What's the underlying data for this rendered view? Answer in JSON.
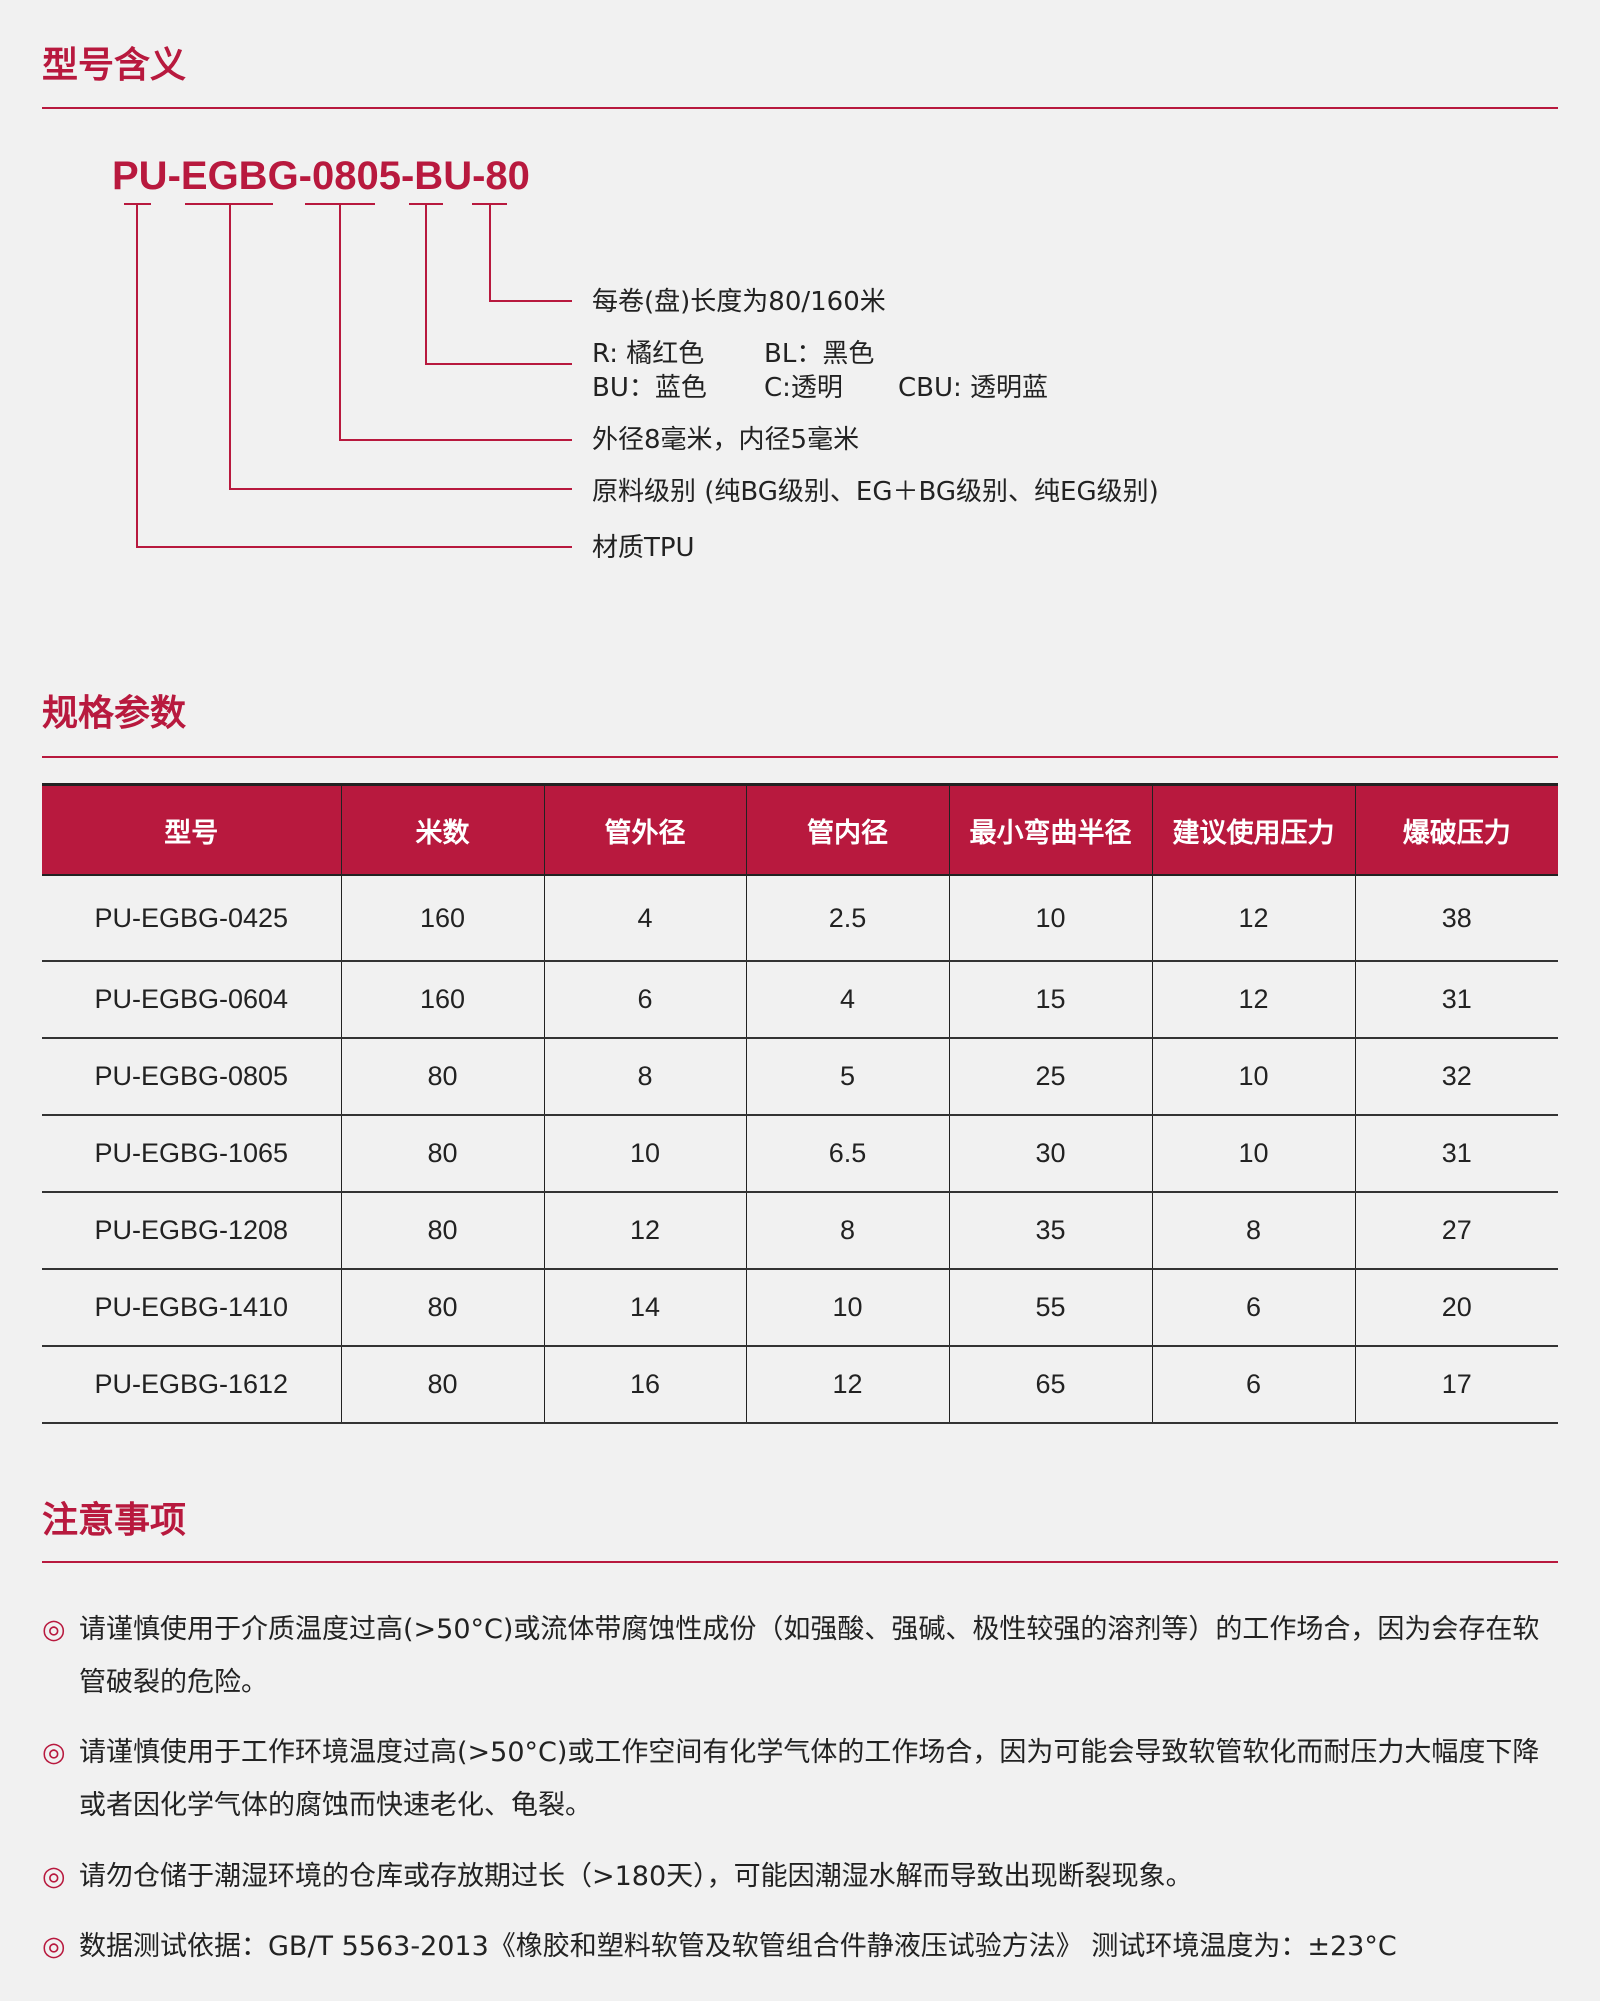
{
  "sections": {
    "model": {
      "title": "型号含义"
    },
    "spec": {
      "title": "规格参数"
    },
    "notes": {
      "title": "注意事项"
    }
  },
  "model_code": "PU-EGBG-0805-BU-80",
  "model_parts": [
    {
      "segment": "80",
      "meaning": "每卷(盘)长度为80/160米"
    },
    {
      "segment": "BU",
      "meaning_lines": [
        [
          "R: 橘红色",
          "BL：黑色"
        ],
        [
          "BU：蓝色",
          "C:透明",
          "CBU: 透明蓝"
        ]
      ]
    },
    {
      "segment": "0805",
      "meaning": "外径8毫米，内径5毫米"
    },
    {
      "segment": "EGBG",
      "meaning": "原料级别 (纯BG级别、EG＋BG级别、纯EG级别)"
    },
    {
      "segment": "PU",
      "meaning": "材质TPU"
    }
  ],
  "table": {
    "headers": [
      "型号",
      "米数",
      "管外径",
      "管内径",
      "最小弯曲半径",
      "建议使用压力",
      "爆破压力"
    ],
    "rows": [
      [
        "PU-EGBG-0425",
        "160",
        "4",
        "2.5",
        "10",
        "12",
        "38"
      ],
      [
        "PU-EGBG-0604",
        "160",
        "6",
        "4",
        "15",
        "12",
        "31"
      ],
      [
        "PU-EGBG-0805",
        "80",
        "8",
        "5",
        "25",
        "10",
        "32"
      ],
      [
        "PU-EGBG-1065",
        "80",
        "10",
        "6.5",
        "30",
        "10",
        "31"
      ],
      [
        "PU-EGBG-1208",
        "80",
        "12",
        "8",
        "35",
        "8",
        "27"
      ],
      [
        "PU-EGBG-1410",
        "80",
        "14",
        "10",
        "55",
        "6",
        "20"
      ],
      [
        "PU-EGBG-1612",
        "80",
        "16",
        "12",
        "65",
        "6",
        "17"
      ]
    ]
  },
  "notes": {
    "bullet": "◎",
    "items": [
      "请谨慎使用于介质温度过高(>50°C)或流体带腐蚀性成份（如强酸、强碱、极性较强的溶剂等）的工作场合，因为会存在软管破裂的危险。",
      "请谨慎使用于工作环境温度过高(>50°C)或工作空间有化学气体的工作场合，因为可能会导致软管软化而耐压力大幅度下降或者因化学气体的腐蚀而快速老化、龟裂。",
      "请勿仓储于潮湿环境的仓库或存放期过长（>180天），可能因潮湿水解而导致出现断裂现象。",
      "数据测试依据：GB/T 5563-2013《橡胶和塑料软管及软管组合件静液压试验方法》 测试环境温度为：±23°C"
    ]
  },
  "colors": {
    "accent": "#b8193e",
    "background": "#f1f1f1",
    "text": "#222222"
  }
}
